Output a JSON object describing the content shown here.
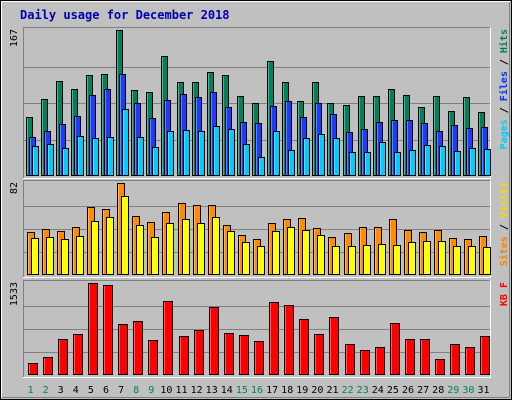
{
  "chart_data": {
    "type": "bar",
    "title": "Daily usage for December 2018",
    "categories": [
      "1",
      "2",
      "3",
      "4",
      "5",
      "6",
      "7",
      "8",
      "9",
      "10",
      "11",
      "12",
      "13",
      "14",
      "15",
      "16",
      "17",
      "18",
      "19",
      "20",
      "21",
      "22",
      "23",
      "24",
      "25",
      "26",
      "27",
      "28",
      "29",
      "30",
      "31"
    ],
    "weekend_days": [
      "1",
      "2",
      "8",
      "9",
      "15",
      "16",
      "22",
      "23",
      "29",
      "30"
    ],
    "panels": [
      {
        "id": "hits",
        "ymax_label": "167",
        "ymax": 167,
        "axis_labels": [
          {
            "text": "Pages",
            "color": "#00ccff"
          },
          {
            "text": "Files",
            "color": "#0033ff"
          },
          {
            "text": "Hits",
            "color": "#00805c"
          }
        ],
        "series": [
          {
            "name": "Hits",
            "color": "#00805c",
            "values": [
              68,
              88,
              109,
              99,
              116,
              117,
              167,
              98,
              96,
              137,
              108,
              108,
              119,
              116,
              92,
              84,
              131,
              107,
              86,
              107,
              83,
              81,
              91,
              91,
              100,
              93,
              79,
              91,
              74,
              90,
              73
            ]
          },
          {
            "name": "Files",
            "color": "#1a3cff",
            "values": [
              45,
              52,
              59,
              69,
              93,
              99,
              117,
              84,
              66,
              87,
              94,
              90,
              96,
              79,
              62,
              61,
              80,
              86,
              67,
              84,
              71,
              50,
              54,
              62,
              64,
              64,
              61,
              51,
              58,
              55,
              56
            ]
          },
          {
            "name": "Pages",
            "color": "#00ccff",
            "values": [
              34,
              37,
              32,
              46,
              43,
              45,
              77,
              45,
              33,
              52,
              53,
              51,
              57,
              54,
              37,
              22,
              52,
              30,
              43,
              48,
              43,
              27,
              28,
              39,
              28,
              30,
              36,
              34,
              29,
              32,
              31
            ]
          }
        ]
      },
      {
        "id": "visits",
        "ymax_label": "82",
        "ymax": 82,
        "axis_labels": [
          {
            "text": "Sites",
            "color": "#ff8000"
          },
          {
            "text": "Visits",
            "color": "#ffd700"
          }
        ],
        "series": [
          {
            "name": "Sites",
            "color": "#ff8c00",
            "values": [
              38,
              41,
              39,
              43,
              61,
              59,
              82,
              53,
              47,
              56,
              64,
              62,
              62,
              45,
              36,
              32,
              46,
              50,
              51,
              42,
              34,
              37,
              43,
              43,
              50,
              40,
              38,
              40,
              33,
              32,
              35
            ]
          },
          {
            "name": "Visits",
            "color": "#ffff00",
            "values": [
              33,
              34,
              32,
              35,
              48,
              52,
              70,
              45,
              34,
              46,
              50,
              46,
              52,
              39,
              29,
              26,
              39,
              43,
              40,
              36,
              26,
              26,
              27,
              28,
              27,
              29,
              30,
              30,
              26,
              26,
              25
            ]
          }
        ]
      },
      {
        "id": "kbytes",
        "ymax_label": "1533",
        "ymax": 1533,
        "axis_labels": [
          {
            "text": "KB F",
            "color": "#ff0000"
          }
        ],
        "series": [
          {
            "name": "KB F",
            "color": "#ff0000",
            "values": [
              205,
              308,
              595,
              684,
              1533,
              1504,
              842,
              903,
              589,
              1236,
              649,
              756,
              1137,
              700,
              667,
              567,
              1223,
              1166,
              931,
              679,
              962,
              519,
              417,
              463,
              859,
              602,
              600,
              264,
              520,
              472,
              648
            ]
          }
        ]
      }
    ]
  }
}
